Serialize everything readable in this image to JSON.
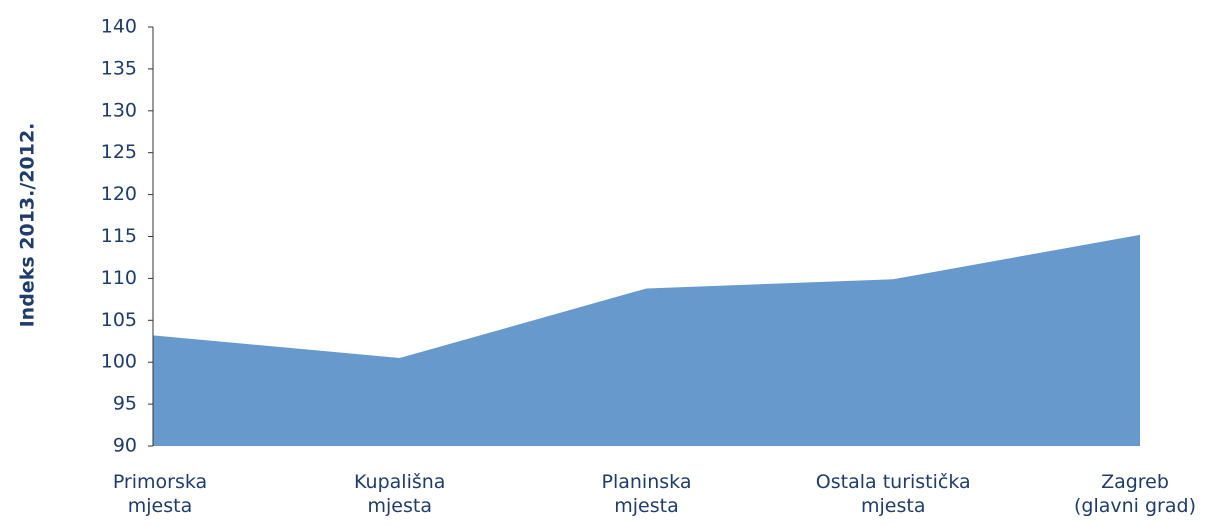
{
  "chart_data": {
    "type": "area",
    "y_label": "Indeks 2013./2012.",
    "categories": [
      "Primorska\nmjesta",
      "Kupališna\nmjesta",
      "Planinska\nmjesta",
      "Ostala turistička\nmjesta",
      "Zagreb\n(glavni grad)"
    ],
    "values": [
      103.2,
      100.5,
      108.8,
      109.9,
      115.2
    ],
    "color": "#6899cc",
    "ylim": [
      90,
      140
    ],
    "yticks": [
      90,
      95,
      100,
      105,
      110,
      115,
      120,
      125,
      130,
      135,
      140
    ]
  }
}
